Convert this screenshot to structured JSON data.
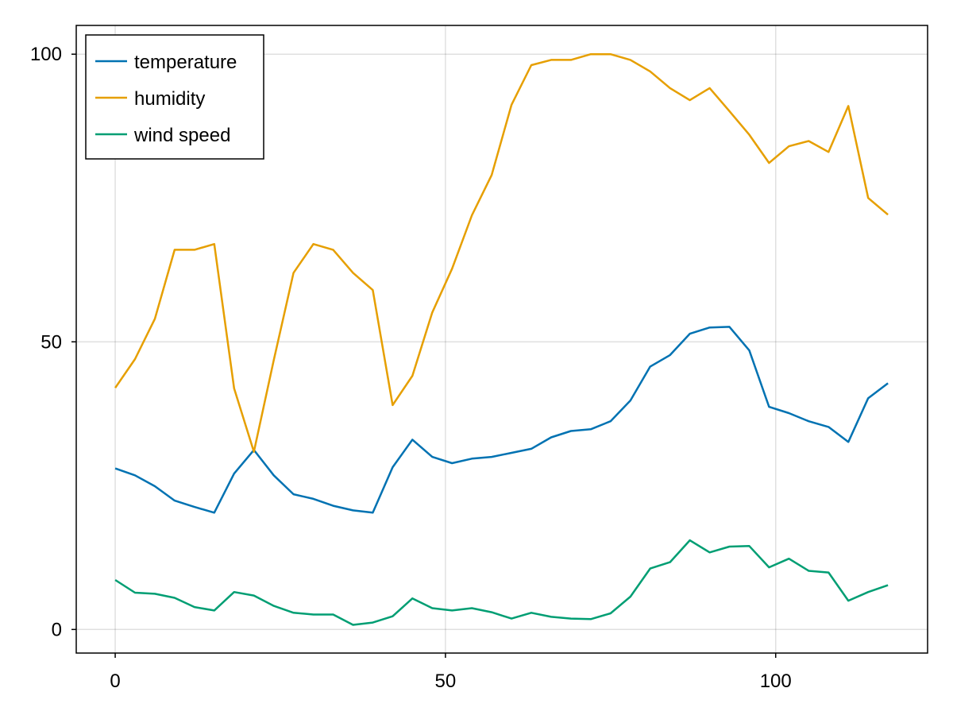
{
  "chart_data": {
    "type": "line",
    "title": "",
    "xlabel": "",
    "ylabel": "",
    "xlim": [
      -5.9,
      123
    ],
    "ylim": [
      -4.1,
      105
    ],
    "xticks": [
      0,
      50,
      100
    ],
    "yticks": [
      0,
      50,
      100
    ],
    "xtick_labels": [
      "0",
      "50",
      "100"
    ],
    "ytick_labels": [
      "0",
      "50",
      "100"
    ],
    "grid": true,
    "legend_position": "top-left",
    "x": [
      0,
      3,
      6,
      9,
      12,
      15,
      18,
      21,
      24,
      27,
      30,
      33,
      36,
      39,
      42,
      45,
      48,
      51,
      54,
      57,
      60,
      63,
      66,
      69,
      72,
      75,
      78,
      81,
      84,
      87,
      90,
      93,
      96,
      99,
      102,
      105,
      108,
      111,
      114,
      117
    ],
    "series": [
      {
        "name": "temperature",
        "color": "#0072b2",
        "values": [
          28.0,
          26.8,
          24.9,
          22.4,
          21.3,
          20.3,
          27.1,
          31.2,
          26.8,
          23.5,
          22.7,
          21.5,
          20.7,
          20.3,
          28.2,
          33.0,
          30.0,
          28.9,
          29.7,
          30.0,
          30.7,
          31.4,
          33.4,
          34.5,
          34.8,
          36.2,
          39.8,
          45.7,
          47.7,
          51.4,
          52.5,
          52.6,
          48.5,
          38.7,
          37.6,
          36.2,
          35.2,
          32.6,
          40.2,
          42.8
        ]
      },
      {
        "name": "humidity",
        "color": "#e69f00",
        "values": [
          42.0,
          47.0,
          54.0,
          66.0,
          66.0,
          67.0,
          41.9,
          30.9,
          46.8,
          62.0,
          67.0,
          66.0,
          62.0,
          59.0,
          39.0,
          44.1,
          55.1,
          62.7,
          72.0,
          79.0,
          91.2,
          98.1,
          99.0,
          99.0,
          100,
          100,
          99.0,
          97.0,
          94.1,
          92.0,
          94.1,
          90.1,
          86.0,
          81.1,
          84.0,
          84.9,
          83.0,
          91.0,
          75.0,
          72.1
        ]
      },
      {
        "name": "wind speed",
        "color": "#009e73",
        "values": [
          8.6,
          6.4,
          6.2,
          5.5,
          3.9,
          3.3,
          6.5,
          5.9,
          4.1,
          2.9,
          2.6,
          2.6,
          0.8,
          1.2,
          2.3,
          5.4,
          3.7,
          3.3,
          3.7,
          3.0,
          1.9,
          2.9,
          2.2,
          1.9,
          1.8,
          2.8,
          5.7,
          10.6,
          11.7,
          15.5,
          13.4,
          14.4,
          14.5,
          10.8,
          12.3,
          10.2,
          9.9,
          5.0,
          6.5,
          7.7
        ]
      }
    ]
  }
}
